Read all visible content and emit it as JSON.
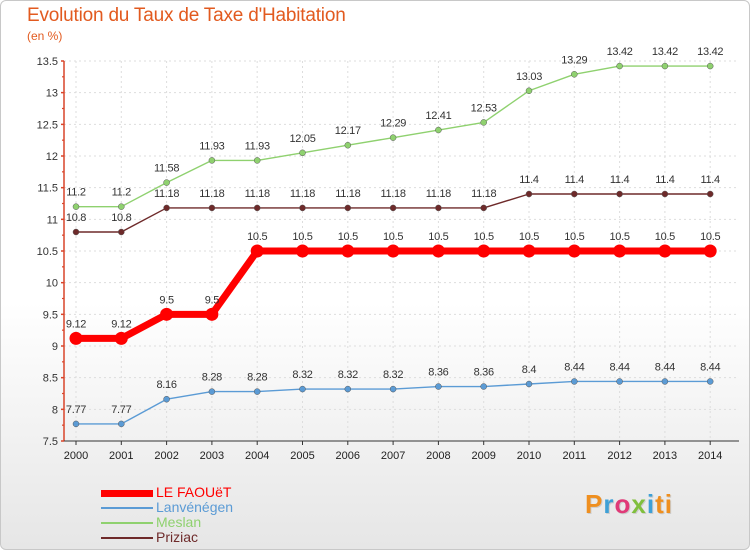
{
  "chart_data": {
    "type": "line",
    "title": "Evolution du Taux de Taxe d'Habitation",
    "ylabel": "(en %)",
    "xlabel": "",
    "x": [
      "2000",
      "2001",
      "2002",
      "2003",
      "2004",
      "2005",
      "2006",
      "2007",
      "2008",
      "2009",
      "2010",
      "2011",
      "2012",
      "2013",
      "2014"
    ],
    "ylim": [
      7.5,
      13.5
    ],
    "yticks": [
      "7.5",
      "8",
      "8.5",
      "9",
      "9.5",
      "10",
      "10.5",
      "11",
      "11.5",
      "12",
      "12.5",
      "13",
      "13.5"
    ],
    "grid": true,
    "legend_position": "bottom-left",
    "series": [
      {
        "name": "LE FAOUëT",
        "color": "#ff0000",
        "values": [
          9.12,
          9.12,
          9.5,
          9.5,
          10.5,
          10.5,
          10.5,
          10.5,
          10.5,
          10.5,
          10.5,
          10.5,
          10.5,
          10.5,
          10.5
        ],
        "labels": [
          "9.12",
          "9.12",
          "9.5",
          "9.5",
          "10.5",
          "10.5",
          "10.5",
          "10.5",
          "10.5",
          "10.5",
          "10.5",
          "10.5",
          "10.5",
          "10.5",
          "10.5"
        ]
      },
      {
        "name": "Lanvénégen",
        "color": "#5b9bd5",
        "values": [
          7.77,
          7.77,
          8.16,
          8.28,
          8.28,
          8.32,
          8.32,
          8.32,
          8.36,
          8.36,
          8.4,
          8.44,
          8.44,
          8.44,
          8.44
        ],
        "labels": [
          "7.77",
          "7.77",
          "8.16",
          "8.28",
          "8.28",
          "8.32",
          "8.32",
          "8.32",
          "8.36",
          "8.36",
          "8.4",
          "8.44",
          "8.44",
          "8.44",
          "8.44"
        ]
      },
      {
        "name": "Meslan",
        "color": "#8fd16f",
        "values": [
          11.2,
          11.2,
          11.58,
          11.93,
          11.93,
          12.05,
          12.17,
          12.29,
          12.41,
          12.53,
          13.03,
          13.29,
          13.42,
          13.42,
          13.42
        ],
        "labels": [
          "11.2",
          "11.2",
          "11.58",
          "11.93",
          "11.93",
          "12.05",
          "12.17",
          "12.29",
          "12.41",
          "12.53",
          "13.03",
          "13.29",
          "13.42",
          "13.42",
          "13.42"
        ]
      },
      {
        "name": "Priziac",
        "color": "#6e2a2a",
        "values": [
          10.8,
          10.8,
          11.18,
          11.18,
          11.18,
          11.18,
          11.18,
          11.18,
          11.18,
          11.18,
          11.4,
          11.4,
          11.4,
          11.4,
          11.4
        ],
        "labels": [
          "10.8",
          "10.8",
          "11.18",
          "11.18",
          "11.18",
          "11.18",
          "11.18",
          "11.18",
          "11.18",
          "11.18",
          "11.4",
          "11.4",
          "11.4",
          "11.4",
          "11.4"
        ]
      }
    ]
  },
  "brand": {
    "letters": [
      "P",
      "r",
      "o",
      "x",
      "i",
      "ti"
    ]
  }
}
